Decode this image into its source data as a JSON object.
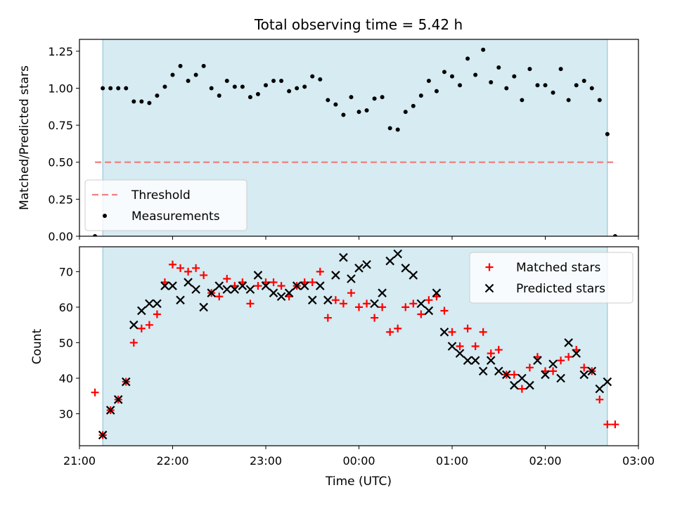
{
  "chart_data": [
    {
      "type": "scatter",
      "title": "Total observing time = 5.42 h",
      "xlabel": "",
      "ylabel": "Matched/Predicted stars",
      "xlim": [
        "21:00",
        "03:00"
      ],
      "ylim": [
        0.0,
        1.33
      ],
      "xticks": [
        "21:00",
        "22:00",
        "23:00",
        "00:00",
        "01:00",
        "02:00",
        "03:00"
      ],
      "yticks": [
        "0.00",
        "0.25",
        "0.50",
        "0.75",
        "1.00",
        "1.25"
      ],
      "observing_window": [
        "21:15",
        "02:40"
      ],
      "grid": false,
      "legend_position": "lower-left",
      "threshold": {
        "name": "Threshold",
        "value": 0.5,
        "x_range": [
          "21:10",
          "02:45"
        ],
        "color": "#f08080"
      },
      "series": [
        {
          "name": "Measurements",
          "color": "#000000",
          "x": [
            "21:10",
            "21:15",
            "21:20",
            "21:25",
            "21:30",
            "21:35",
            "21:40",
            "21:45",
            "21:50",
            "21:55",
            "22:00",
            "22:05",
            "22:10",
            "22:15",
            "22:20",
            "22:25",
            "22:30",
            "22:35",
            "22:40",
            "22:45",
            "22:50",
            "22:55",
            "23:00",
            "23:05",
            "23:10",
            "23:15",
            "23:20",
            "23:25",
            "23:30",
            "23:35",
            "23:40",
            "23:45",
            "23:50",
            "23:55",
            "00:00",
            "00:05",
            "00:10",
            "00:15",
            "00:20",
            "00:25",
            "00:30",
            "00:35",
            "00:40",
            "00:45",
            "00:50",
            "00:55",
            "01:00",
            "01:05",
            "01:10",
            "01:15",
            "01:20",
            "01:25",
            "01:30",
            "01:35",
            "01:40",
            "01:45",
            "01:50",
            "01:55",
            "02:00",
            "02:05",
            "02:10",
            "02:15",
            "02:20",
            "02:25",
            "02:30",
            "02:35",
            "02:40",
            "02:45"
          ],
          "y": [
            0.0,
            1.0,
            1.0,
            1.0,
            1.0,
            0.91,
            0.91,
            0.9,
            0.95,
            1.01,
            1.09,
            1.15,
            1.05,
            1.09,
            1.15,
            1.0,
            0.95,
            1.05,
            1.01,
            1.01,
            0.94,
            0.96,
            1.02,
            1.05,
            1.05,
            0.98,
            1.0,
            1.01,
            1.08,
            1.06,
            0.92,
            0.89,
            0.82,
            0.94,
            0.84,
            0.85,
            0.93,
            0.94,
            0.73,
            0.72,
            0.84,
            0.88,
            0.95,
            1.05,
            0.98,
            1.11,
            1.08,
            1.02,
            1.2,
            1.09,
            1.26,
            1.04,
            1.14,
            1.0,
            1.08,
            0.92,
            1.13,
            1.02,
            1.02,
            0.97,
            1.13,
            0.92,
            1.02,
            1.05,
            1.0,
            0.92,
            0.69,
            0.0
          ]
        }
      ]
    },
    {
      "type": "scatter",
      "title": "",
      "xlabel": "Time (UTC)",
      "ylabel": "Count",
      "xlim": [
        "21:00",
        "03:00"
      ],
      "ylim": [
        21,
        77
      ],
      "xticks": [
        "21:00",
        "22:00",
        "23:00",
        "00:00",
        "01:00",
        "02:00",
        "03:00"
      ],
      "yticks": [
        "30",
        "40",
        "50",
        "60",
        "70"
      ],
      "observing_window": [
        "21:15",
        "02:40"
      ],
      "grid": false,
      "legend_position": "top-right",
      "series": [
        {
          "name": "Matched stars",
          "marker": "plus",
          "color": "#ff0000",
          "x": [
            "21:10",
            "21:15",
            "21:20",
            "21:25",
            "21:30",
            "21:35",
            "21:40",
            "21:45",
            "21:50",
            "21:55",
            "22:00",
            "22:05",
            "22:10",
            "22:15",
            "22:20",
            "22:25",
            "22:30",
            "22:35",
            "22:40",
            "22:45",
            "22:50",
            "22:55",
            "23:00",
            "23:05",
            "23:10",
            "23:15",
            "23:20",
            "23:25",
            "23:30",
            "23:35",
            "23:40",
            "23:45",
            "23:50",
            "23:55",
            "00:00",
            "00:05",
            "00:10",
            "00:15",
            "00:20",
            "00:25",
            "00:30",
            "00:35",
            "00:40",
            "00:45",
            "00:50",
            "00:55",
            "01:00",
            "01:05",
            "01:10",
            "01:15",
            "01:20",
            "01:25",
            "01:30",
            "01:35",
            "01:40",
            "01:45",
            "01:50",
            "01:55",
            "02:00",
            "02:05",
            "02:10",
            "02:15",
            "02:20",
            "02:25",
            "02:30",
            "02:35",
            "02:40",
            "02:45"
          ],
          "y": [
            36,
            24,
            31,
            34,
            39,
            50,
            54,
            55,
            58,
            67,
            72,
            71,
            70,
            71,
            69,
            64,
            63,
            68,
            66,
            67,
            61,
            66,
            67,
            67,
            66,
            63,
            66,
            67,
            67,
            70,
            57,
            62,
            61,
            64,
            60,
            61,
            57,
            60,
            53,
            54,
            60,
            61,
            58,
            62,
            63,
            59,
            53,
            49,
            54,
            49,
            53,
            47,
            48,
            41,
            41,
            37,
            43,
            46,
            42,
            42,
            45,
            46,
            48,
            43,
            42,
            34,
            27,
            27
          ]
        },
        {
          "name": "Predicted stars",
          "marker": "x",
          "color": "#000000",
          "x": [
            "21:15",
            "21:20",
            "21:25",
            "21:30",
            "21:35",
            "21:40",
            "21:45",
            "21:50",
            "21:55",
            "22:00",
            "22:05",
            "22:10",
            "22:15",
            "22:20",
            "22:25",
            "22:30",
            "22:35",
            "22:40",
            "22:45",
            "22:50",
            "22:55",
            "23:00",
            "23:05",
            "23:10",
            "23:15",
            "23:20",
            "23:25",
            "23:30",
            "23:35",
            "23:40",
            "23:45",
            "23:50",
            "23:55",
            "00:00",
            "00:05",
            "00:10",
            "00:15",
            "00:20",
            "00:25",
            "00:30",
            "00:35",
            "00:40",
            "00:45",
            "00:50",
            "00:55",
            "01:00",
            "01:05",
            "01:10",
            "01:15",
            "01:20",
            "01:25",
            "01:30",
            "01:35",
            "01:40",
            "01:45",
            "01:50",
            "01:55",
            "02:00",
            "02:05",
            "02:10",
            "02:15",
            "02:20",
            "02:25",
            "02:30",
            "02:35",
            "02:40"
          ],
          "y": [
            24,
            31,
            34,
            39,
            55,
            59,
            61,
            61,
            66,
            66,
            62,
            67,
            65,
            60,
            64,
            66,
            65,
            65,
            66,
            65,
            69,
            66,
            64,
            63,
            64,
            66,
            66,
            62,
            66,
            62,
            69,
            74,
            68,
            71,
            72,
            61,
            64,
            73,
            75,
            71,
            69,
            61,
            59,
            64,
            53,
            49,
            47,
            45,
            45,
            42,
            45,
            42,
            41,
            38,
            40,
            38,
            45,
            41,
            44,
            40,
            50,
            47,
            41,
            42,
            37,
            39
          ]
        }
      ]
    }
  ]
}
